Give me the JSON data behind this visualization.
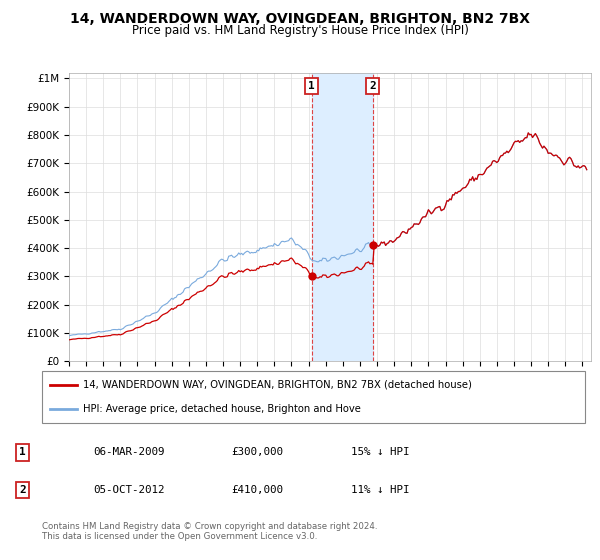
{
  "title": "14, WANDERDOWN WAY, OVINGDEAN, BRIGHTON, BN2 7BX",
  "subtitle": "Price paid vs. HM Land Registry's House Price Index (HPI)",
  "title_fontsize": 10,
  "subtitle_fontsize": 8.5,
  "ylabel_ticks": [
    "£0",
    "£100K",
    "£200K",
    "£300K",
    "£400K",
    "£500K",
    "£600K",
    "£700K",
    "£800K",
    "£900K",
    "£1M"
  ],
  "ytick_values": [
    0,
    100000,
    200000,
    300000,
    400000,
    500000,
    600000,
    700000,
    800000,
    900000,
    1000000
  ],
  "ylim": [
    0,
    1020000
  ],
  "xlim_start": 1995.0,
  "xlim_end": 2025.5,
  "background_color": "#ffffff",
  "grid_color": "#dddddd",
  "sale1_price": 300000,
  "sale1_label": "1",
  "sale1_x": 2009.17,
  "sale2_price": 410000,
  "sale2_label": "2",
  "sale2_x": 2012.75,
  "shade_color": "#ddeeff",
  "line_property_color": "#cc0000",
  "line_hpi_color": "#7aaadd",
  "legend_property_label": "14, WANDERDOWN WAY, OVINGDEAN, BRIGHTON, BN2 7BX (detached house)",
  "legend_hpi_label": "HPI: Average price, detached house, Brighton and Hove",
  "footer_line1": "Contains HM Land Registry data © Crown copyright and database right 2024.",
  "footer_line2": "This data is licensed under the Open Government Licence v3.0.",
  "table_row1": [
    "1",
    "06-MAR-2009",
    "£300,000",
    "15% ↓ HPI"
  ],
  "table_row2": [
    "2",
    "05-OCT-2012",
    "£410,000",
    "11% ↓ HPI"
  ]
}
